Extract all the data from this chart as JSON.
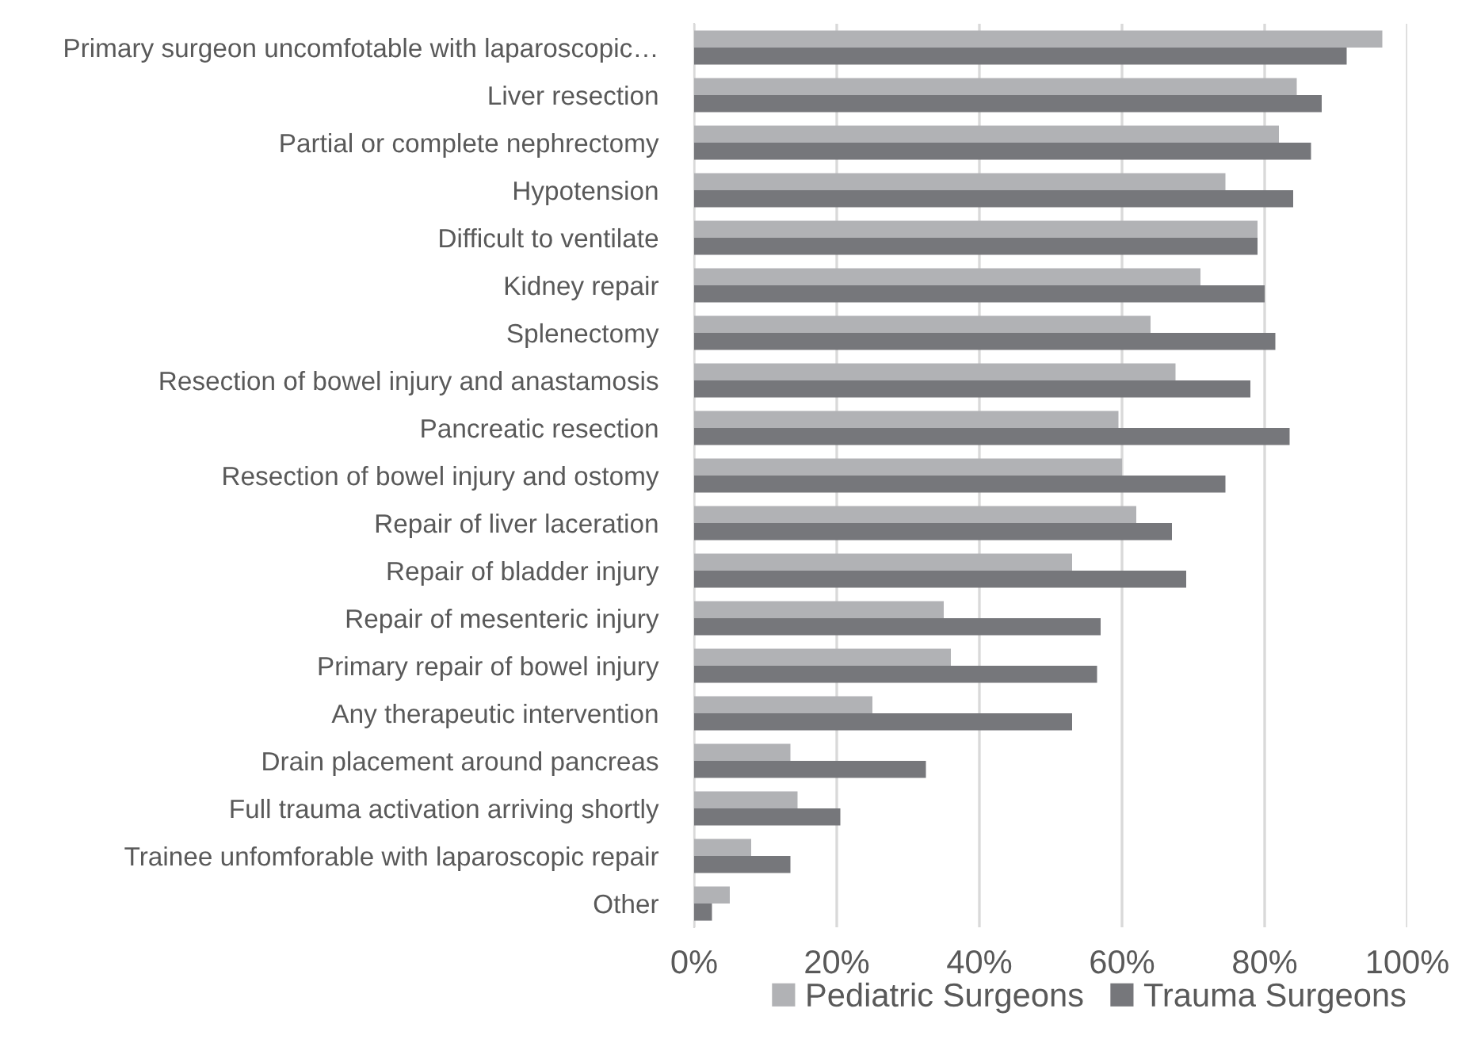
{
  "chart_data": {
    "type": "bar",
    "orientation": "horizontal",
    "categories": [
      "Primary surgeon uncomfotable with laparoscopic…",
      "Liver resection",
      "Partial or complete nephrectomy",
      "Hypotension",
      "Difficult to ventilate",
      "Kidney repair",
      "Splenectomy",
      "Resection of bowel injury and anastamosis",
      "Pancreatic resection",
      "Resection of bowel injury and ostomy",
      "Repair of liver laceration",
      "Repair of bladder injury",
      "Repair of mesenteric injury",
      "Primary repair of bowel injury",
      "Any therapeutic intervention",
      "Drain placement around pancreas",
      "Full trauma activation arriving shortly",
      "Trainee unfomforable with laparoscopic repair",
      "Other"
    ],
    "series": [
      {
        "name": "Pediatric Surgeons",
        "color": "#b1b2b5",
        "values": [
          96.5,
          84.5,
          82,
          74.5,
          79,
          71,
          64,
          67.5,
          59.5,
          60,
          62,
          53,
          35,
          36,
          25,
          13.5,
          14.5,
          8,
          5
        ]
      },
      {
        "name": "Trauma Surgeons",
        "color": "#76777b",
        "values": [
          91.5,
          88,
          86.5,
          84,
          79,
          80,
          81.5,
          78,
          83.5,
          74.5,
          67,
          69,
          57,
          56.5,
          53,
          32.5,
          20.5,
          13.5,
          2.5
        ]
      }
    ],
    "xlim": [
      0,
      100
    ],
    "xticks": [
      {
        "value": 0,
        "label": "0%"
      },
      {
        "value": 20,
        "label": "20%"
      },
      {
        "value": 40,
        "label": "40%"
      },
      {
        "value": 60,
        "label": "60%"
      },
      {
        "value": 80,
        "label": "80%"
      },
      {
        "value": 100,
        "label": "100%"
      }
    ],
    "grid": "x",
    "legend": "bottom"
  }
}
